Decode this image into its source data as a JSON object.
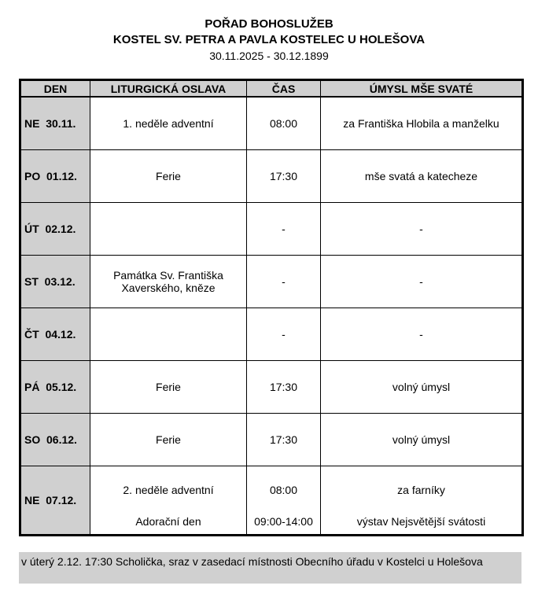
{
  "header": {
    "title": "POŘAD BOHOSLUŽEB",
    "church": "KOSTEL SV. PETRA A PAVLA KOSTELEC U HOLEŠOVA",
    "range": "30.11.2025 - 30.12.1899"
  },
  "columns": [
    "DEN",
    "LITURGICKÁ OSLAVA",
    "ČAS",
    "ÚMYSL MŠE SVATÉ"
  ],
  "rows": [
    {
      "day": "NE  30.11.",
      "celebration": [
        "1. neděle adventní"
      ],
      "time": [
        "08:00"
      ],
      "intention": [
        "za Františka Hlobila a manželku"
      ]
    },
    {
      "day": "PO  01.12.",
      "celebration": [
        "Ferie"
      ],
      "time": [
        "17:30"
      ],
      "intention": [
        "mše svatá a katecheze"
      ]
    },
    {
      "day": "ÚT  02.12.",
      "celebration": [
        ""
      ],
      "time": [
        "-"
      ],
      "intention": [
        "-"
      ]
    },
    {
      "day": "ST  03.12.",
      "celebration": [
        "Památka Sv. Františka Xaverského, kněze"
      ],
      "time": [
        "-"
      ],
      "intention": [
        "-"
      ]
    },
    {
      "day": "ČT  04.12.",
      "celebration": [
        ""
      ],
      "time": [
        "-"
      ],
      "intention": [
        "-"
      ]
    },
    {
      "day": "PÁ  05.12.",
      "celebration": [
        "Ferie"
      ],
      "time": [
        "17:30"
      ],
      "intention": [
        "volný úmysl"
      ]
    },
    {
      "day": "SO  06.12.",
      "celebration": [
        "Ferie"
      ],
      "time": [
        "17:30"
      ],
      "intention": [
        "volný úmysl"
      ]
    },
    {
      "day": "NE  07.12.",
      "celebration": [
        "2. neděle adventní",
        "Adorační den"
      ],
      "time": [
        "08:00",
        "09:00-14:00"
      ],
      "intention": [
        "za farníky",
        "výstav Nejsvětější svátosti"
      ]
    }
  ],
  "note": "v úterý 2.12. 17:30 Scholička, sraz v zasedací místnosti Obecního úřadu v Kostelci u Holešova"
}
